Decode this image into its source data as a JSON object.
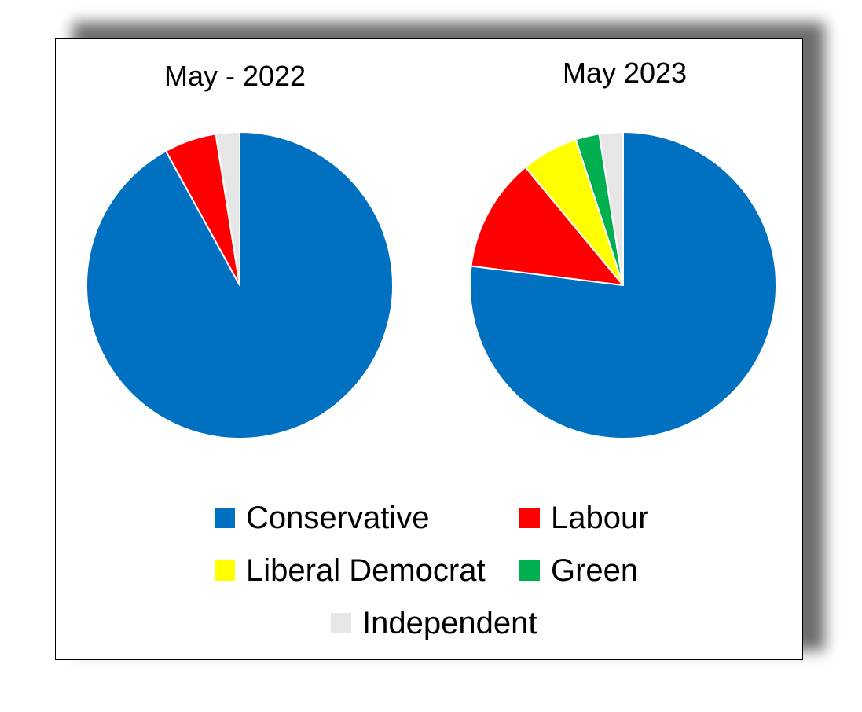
{
  "colors": {
    "Conservative": "#0070C0",
    "Labour": "#FF0000",
    "Liberal Democrat": "#FFFF00",
    "Green": "#00B050",
    "Independent": "#E7E6E6"
  },
  "chart_data": [
    {
      "type": "pie",
      "title": "May - 2022",
      "slices": [
        {
          "label": "Conservative",
          "value": 92
        },
        {
          "label": "Labour",
          "value": 5.5
        },
        {
          "label": "Independent",
          "value": 2.5
        }
      ]
    },
    {
      "type": "pie",
      "title": "May 2023",
      "slices": [
        {
          "label": "Conservative",
          "value": 77
        },
        {
          "label": "Labour",
          "value": 12
        },
        {
          "label": "Liberal Democrat",
          "value": 6
        },
        {
          "label": "Green",
          "value": 2.5
        },
        {
          "label": "Independent",
          "value": 2.5
        }
      ]
    }
  ],
  "legend": {
    "placement": "bottom",
    "items": [
      {
        "label": "Conservative",
        "icon": "square"
      },
      {
        "label": "Labour",
        "icon": "square"
      },
      {
        "label": "Liberal Democrat",
        "icon": "square"
      },
      {
        "label": "Green",
        "icon": "square"
      },
      {
        "label": "Independent",
        "icon": "square"
      }
    ]
  }
}
